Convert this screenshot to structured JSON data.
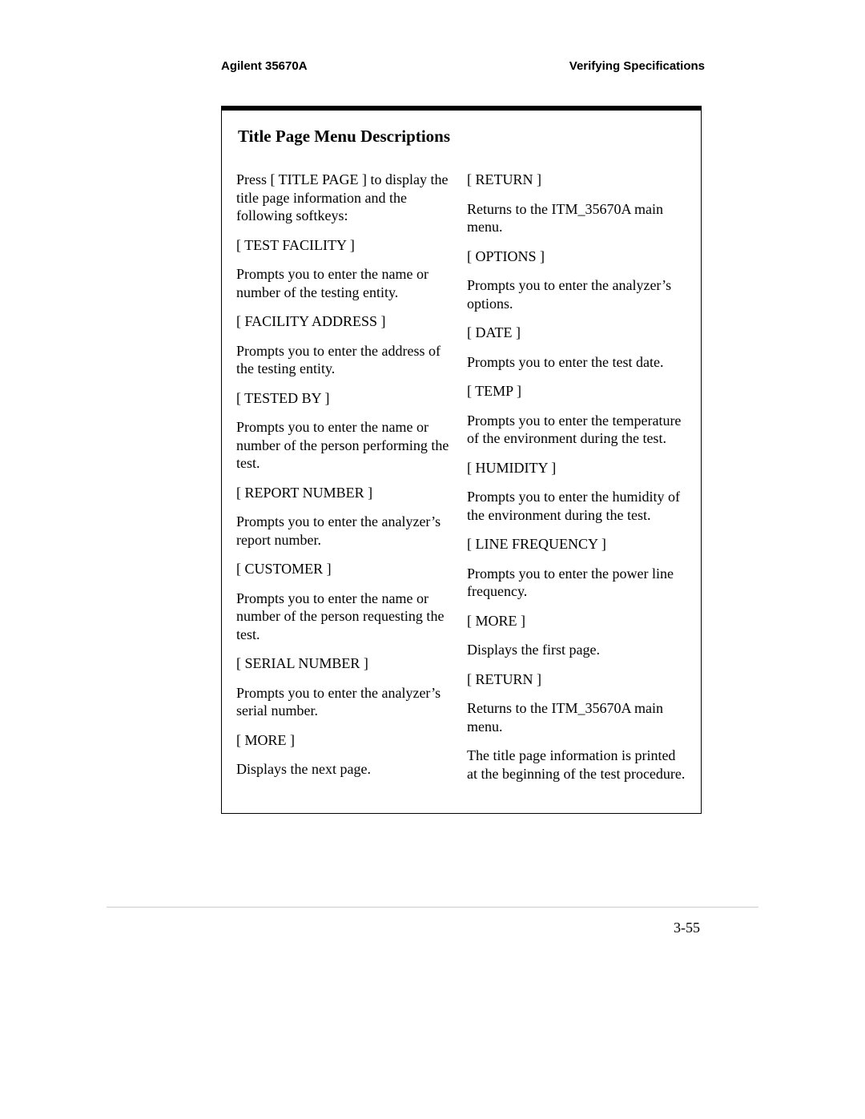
{
  "header": {
    "left": "Agilent 35670A",
    "right": "Verifying Specifications"
  },
  "section_title": "Title Page Menu Descriptions",
  "left_column": {
    "p1": "Press [ TITLE PAGE ] to display the title page information and the following softkeys:",
    "k1": "[ TEST FACILITY ]",
    "d1": "Prompts you to enter the name or number of the testing entity.",
    "k2": "[ FACILITY ADDRESS ]",
    "d2": "Prompts you to enter the address of the testing entity.",
    "k3": "[ TESTED BY ]",
    "d3": "Prompts you to enter the name or number of the person performing the test.",
    "k4": "[ REPORT NUMBER ]",
    "d4": "Prompts you to enter the analyzer’s report number.",
    "k5": "[ CUSTOMER ]",
    "d5": "Prompts you to enter the name or number of the person requesting the test.",
    "k6": "[ SERIAL NUMBER ]",
    "d6": "Prompts you to enter the analyzer’s serial number.",
    "k7": "[ MORE ]",
    "d7": "Displays the next page."
  },
  "right_column": {
    "k1": "[ RETURN ]",
    "d1": "Returns to the ITM_35670A main menu.",
    "k2": "[ OPTIONS ]",
    "d2": "Prompts you to enter the analyzer’s options.",
    "k3": "[ DATE ]",
    "d3": "Prompts you to enter the test date.",
    "k4": "[ TEMP ]",
    "d4": "Prompts you to enter the temperature of the environment during the test.",
    "k5": "[ HUMIDITY ]",
    "d5": "Prompts you to enter the humidity of the environment during the test.",
    "k6": "[ LINE FREQUENCY ]",
    "d6": "Prompts you to enter the power line frequency.",
    "k7": "[ MORE ]",
    "d7": "Displays the first page.",
    "k8": "[ RETURN ]",
    "d8": "Returns to the ITM_35670A main menu.",
    "d9": "The title page information is printed at the beginning of the test procedure."
  },
  "page_number": "3-55"
}
